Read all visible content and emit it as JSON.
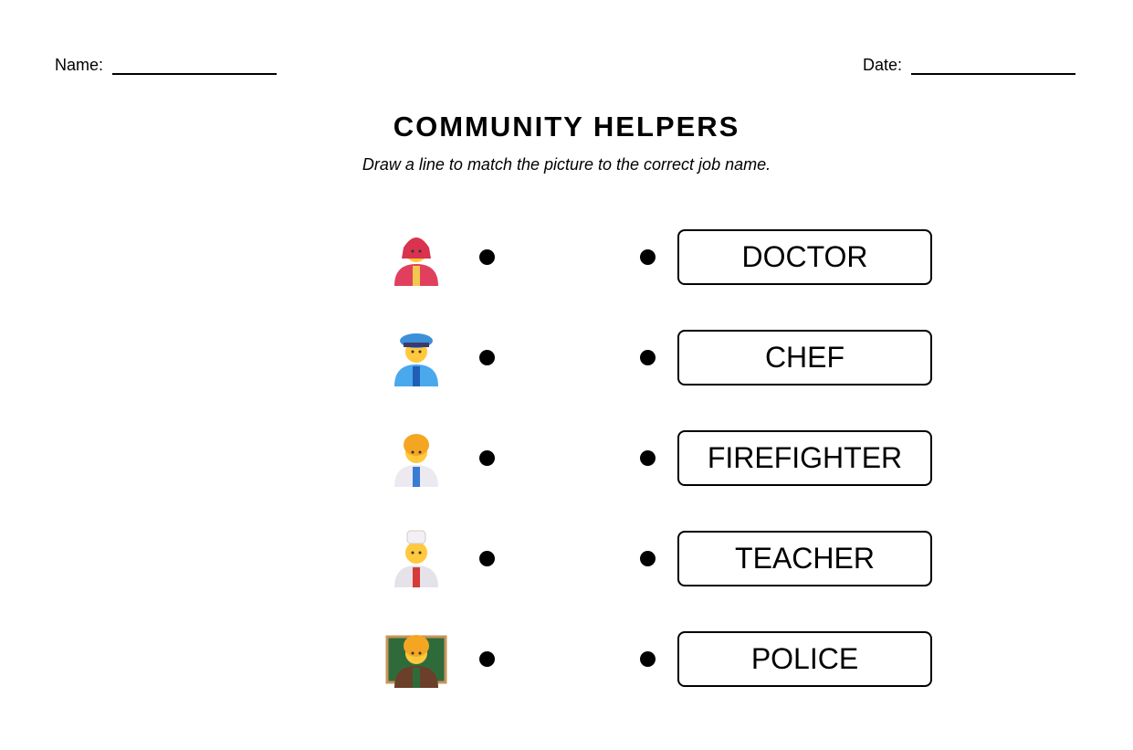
{
  "header": {
    "name_label": "Name:",
    "date_label": "Date:"
  },
  "title": "COMMUNITY HELPERS",
  "instructions": "Draw a line to match the picture to the correct job name.",
  "pictures": [
    {
      "icon": "firefighter-icon",
      "body": "#e0405e",
      "hat": "#d9334f",
      "accent": "#f2c94c"
    },
    {
      "icon": "police-officer-icon",
      "body": "#4aa8ec",
      "hat": "#3d8fd8",
      "accent": "#1f5fb8"
    },
    {
      "icon": "doctor-icon",
      "body": "#eceaf0",
      "hat": "#f4a623",
      "accent": "#3a7bd5"
    },
    {
      "icon": "chef-icon",
      "body": "#e6e2ea",
      "hat": "#f2f0f4",
      "accent": "#d63a3a"
    },
    {
      "icon": "teacher-icon",
      "body": "#6b3f2a",
      "hat": "#f4a623",
      "accent": "#2f6b3a"
    }
  ],
  "job_names": [
    "DOCTOR",
    "CHEF",
    "FIREFIGHTER",
    "TEACHER",
    "POLICE"
  ]
}
